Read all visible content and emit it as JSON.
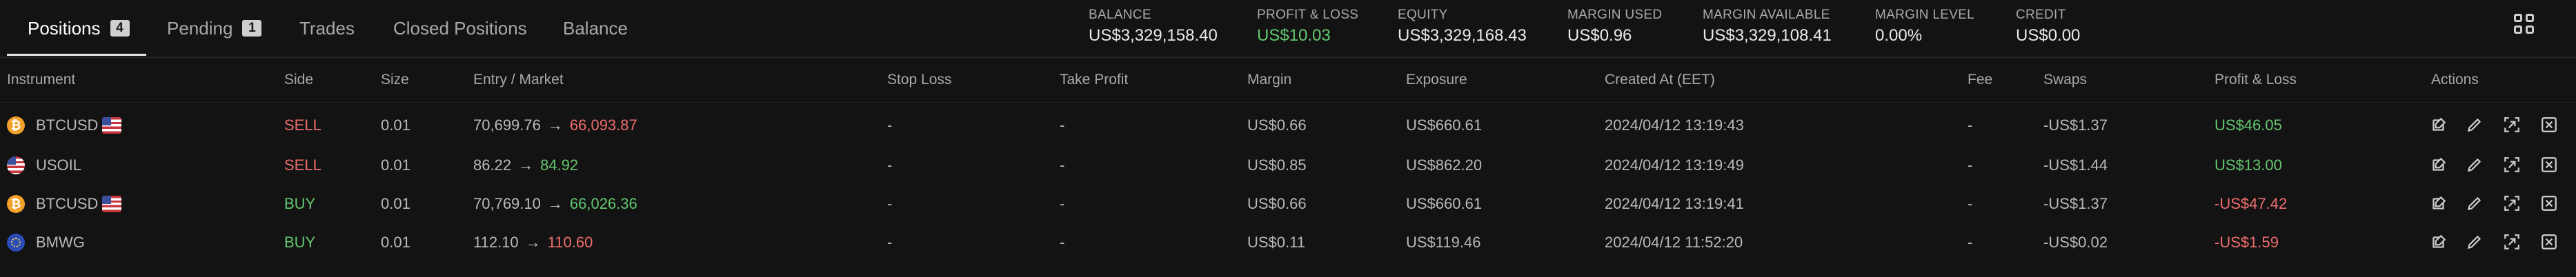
{
  "tabs": [
    {
      "label": "Positions",
      "badge": "4"
    },
    {
      "label": "Pending",
      "badge": "1"
    },
    {
      "label": "Trades"
    },
    {
      "label": "Closed Positions"
    },
    {
      "label": "Balance"
    }
  ],
  "summary": [
    {
      "label": "BALANCE",
      "value": "US$3,329,158.40"
    },
    {
      "label": "PROFIT & LOSS",
      "value": "US$10.03"
    },
    {
      "label": "EQUITY",
      "value": "US$3,329,168.43"
    },
    {
      "label": "MARGIN USED",
      "value": "US$0.96"
    },
    {
      "label": "MARGIN AVAILABLE",
      "value": "US$3,329,108.41"
    },
    {
      "label": "MARGIN LEVEL",
      "value": "0.00%"
    },
    {
      "label": "CREDIT",
      "value": "US$0.00"
    }
  ],
  "columns": [
    "Instrument",
    "Side",
    "Size",
    "Entry / Market",
    "Stop Loss",
    "Take Profit",
    "Margin",
    "Exposure",
    "Created At (EET)",
    "Fee",
    "Swaps",
    "Profit & Loss",
    "Actions"
  ],
  "rows": [
    {
      "instrument": "BTCUSD",
      "side": "SELL",
      "size": "0.01",
      "entry": "70,699.76",
      "market": "66,093.87",
      "stop_loss": "-",
      "take_profit": "-",
      "margin": "US$0.66",
      "exposure": "US$660.61",
      "created": "2024/04/12 13:19:43",
      "fee": "-",
      "swaps": "-US$1.37",
      "pnl": "US$46.05"
    },
    {
      "instrument": "USOIL",
      "side": "SELL",
      "size": "0.01",
      "entry": "86.22",
      "market": "84.92",
      "stop_loss": "-",
      "take_profit": "-",
      "margin": "US$0.85",
      "exposure": "US$862.20",
      "created": "2024/04/12 13:19:49",
      "fee": "-",
      "swaps": "-US$1.44",
      "pnl": "US$13.00"
    },
    {
      "instrument": "BTCUSD",
      "side": "BUY",
      "size": "0.01",
      "entry": "70,769.10",
      "market": "66,026.36",
      "stop_loss": "-",
      "take_profit": "-",
      "margin": "US$0.66",
      "exposure": "US$660.61",
      "created": "2024/04/12 13:19:41",
      "fee": "-",
      "swaps": "-US$1.37",
      "pnl": "-US$47.42"
    },
    {
      "instrument": "BMWG",
      "side": "BUY",
      "size": "0.01",
      "entry": "112.10",
      "market": "110.60",
      "stop_loss": "-",
      "take_profit": "-",
      "margin": "US$0.11",
      "exposure": "US$119.46",
      "created": "2024/04/12 11:52:20",
      "fee": "-",
      "swaps": "-US$0.02",
      "pnl": "-US$1.59"
    }
  ],
  "row_icons": [
    {
      "primary": "bitcoin-icon",
      "secondary": "us-flag-icon"
    },
    {
      "primary": "us-flag-icon"
    },
    {
      "primary": "bitcoin-icon",
      "secondary": "us-flag-icon"
    },
    {
      "primary": "eu-icon"
    }
  ],
  "action_icons": [
    "edit-position-icon",
    "pencil-icon",
    "partial-close-icon",
    "close-position-icon"
  ],
  "colors": {
    "background": "#131313",
    "positive": "#63c76f",
    "negative": "#ef6d6d",
    "muted": "#a9a9a9"
  }
}
